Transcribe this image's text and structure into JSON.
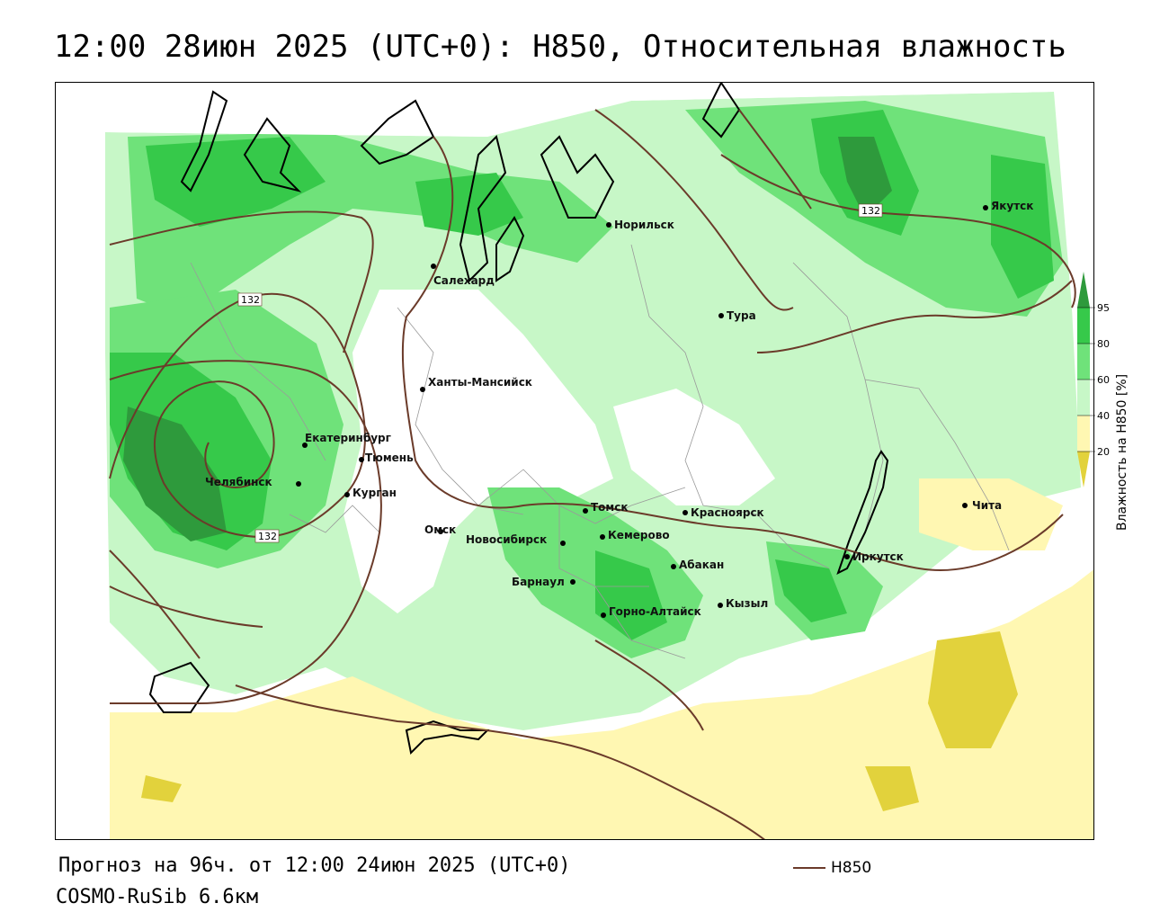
{
  "title": "12:00 28июн 2025 (UTC+0): H850, Относительная влажность",
  "footer": {
    "forecast": "Прогноз на 96ч. от 12:00 24июн 2025 (UTC+0)",
    "model": "COSMO-RuSib 6.6км",
    "line_key_label": "H850"
  },
  "legend": {
    "title": "Влажность на H850 [%]",
    "ticks": [
      "95",
      "80",
      "60",
      "40",
      "20"
    ],
    "colors": {
      "c95": "#2e9a3c",
      "c80": "#36c94a",
      "c60": "#6fe27a",
      "c40": "#c7f7c7",
      "c_low": "#fff7b2",
      "c20": "#e2d23c"
    }
  },
  "contours": {
    "label_132_a": "132",
    "label_132_b": "132",
    "label_132_c": "132",
    "color": "#6b3b2a"
  },
  "cities": [
    {
      "name": "Якутск"
    },
    {
      "name": "Норильск"
    },
    {
      "name": "Салехард"
    },
    {
      "name": "Тура"
    },
    {
      "name": "Ханты-Мансийск"
    },
    {
      "name": "Екатеринбург"
    },
    {
      "name": "Тюмень"
    },
    {
      "name": "Челябинск"
    },
    {
      "name": "Курган"
    },
    {
      "name": "Омск"
    },
    {
      "name": "Томск"
    },
    {
      "name": "Красноярск"
    },
    {
      "name": "Новосибирск"
    },
    {
      "name": "Кемерово"
    },
    {
      "name": "Абакан"
    },
    {
      "name": "Барнаул"
    },
    {
      "name": "Горно-Алтайск"
    },
    {
      "name": "Кызыл"
    },
    {
      "name": "Иркутск"
    },
    {
      "name": "Чита"
    }
  ]
}
